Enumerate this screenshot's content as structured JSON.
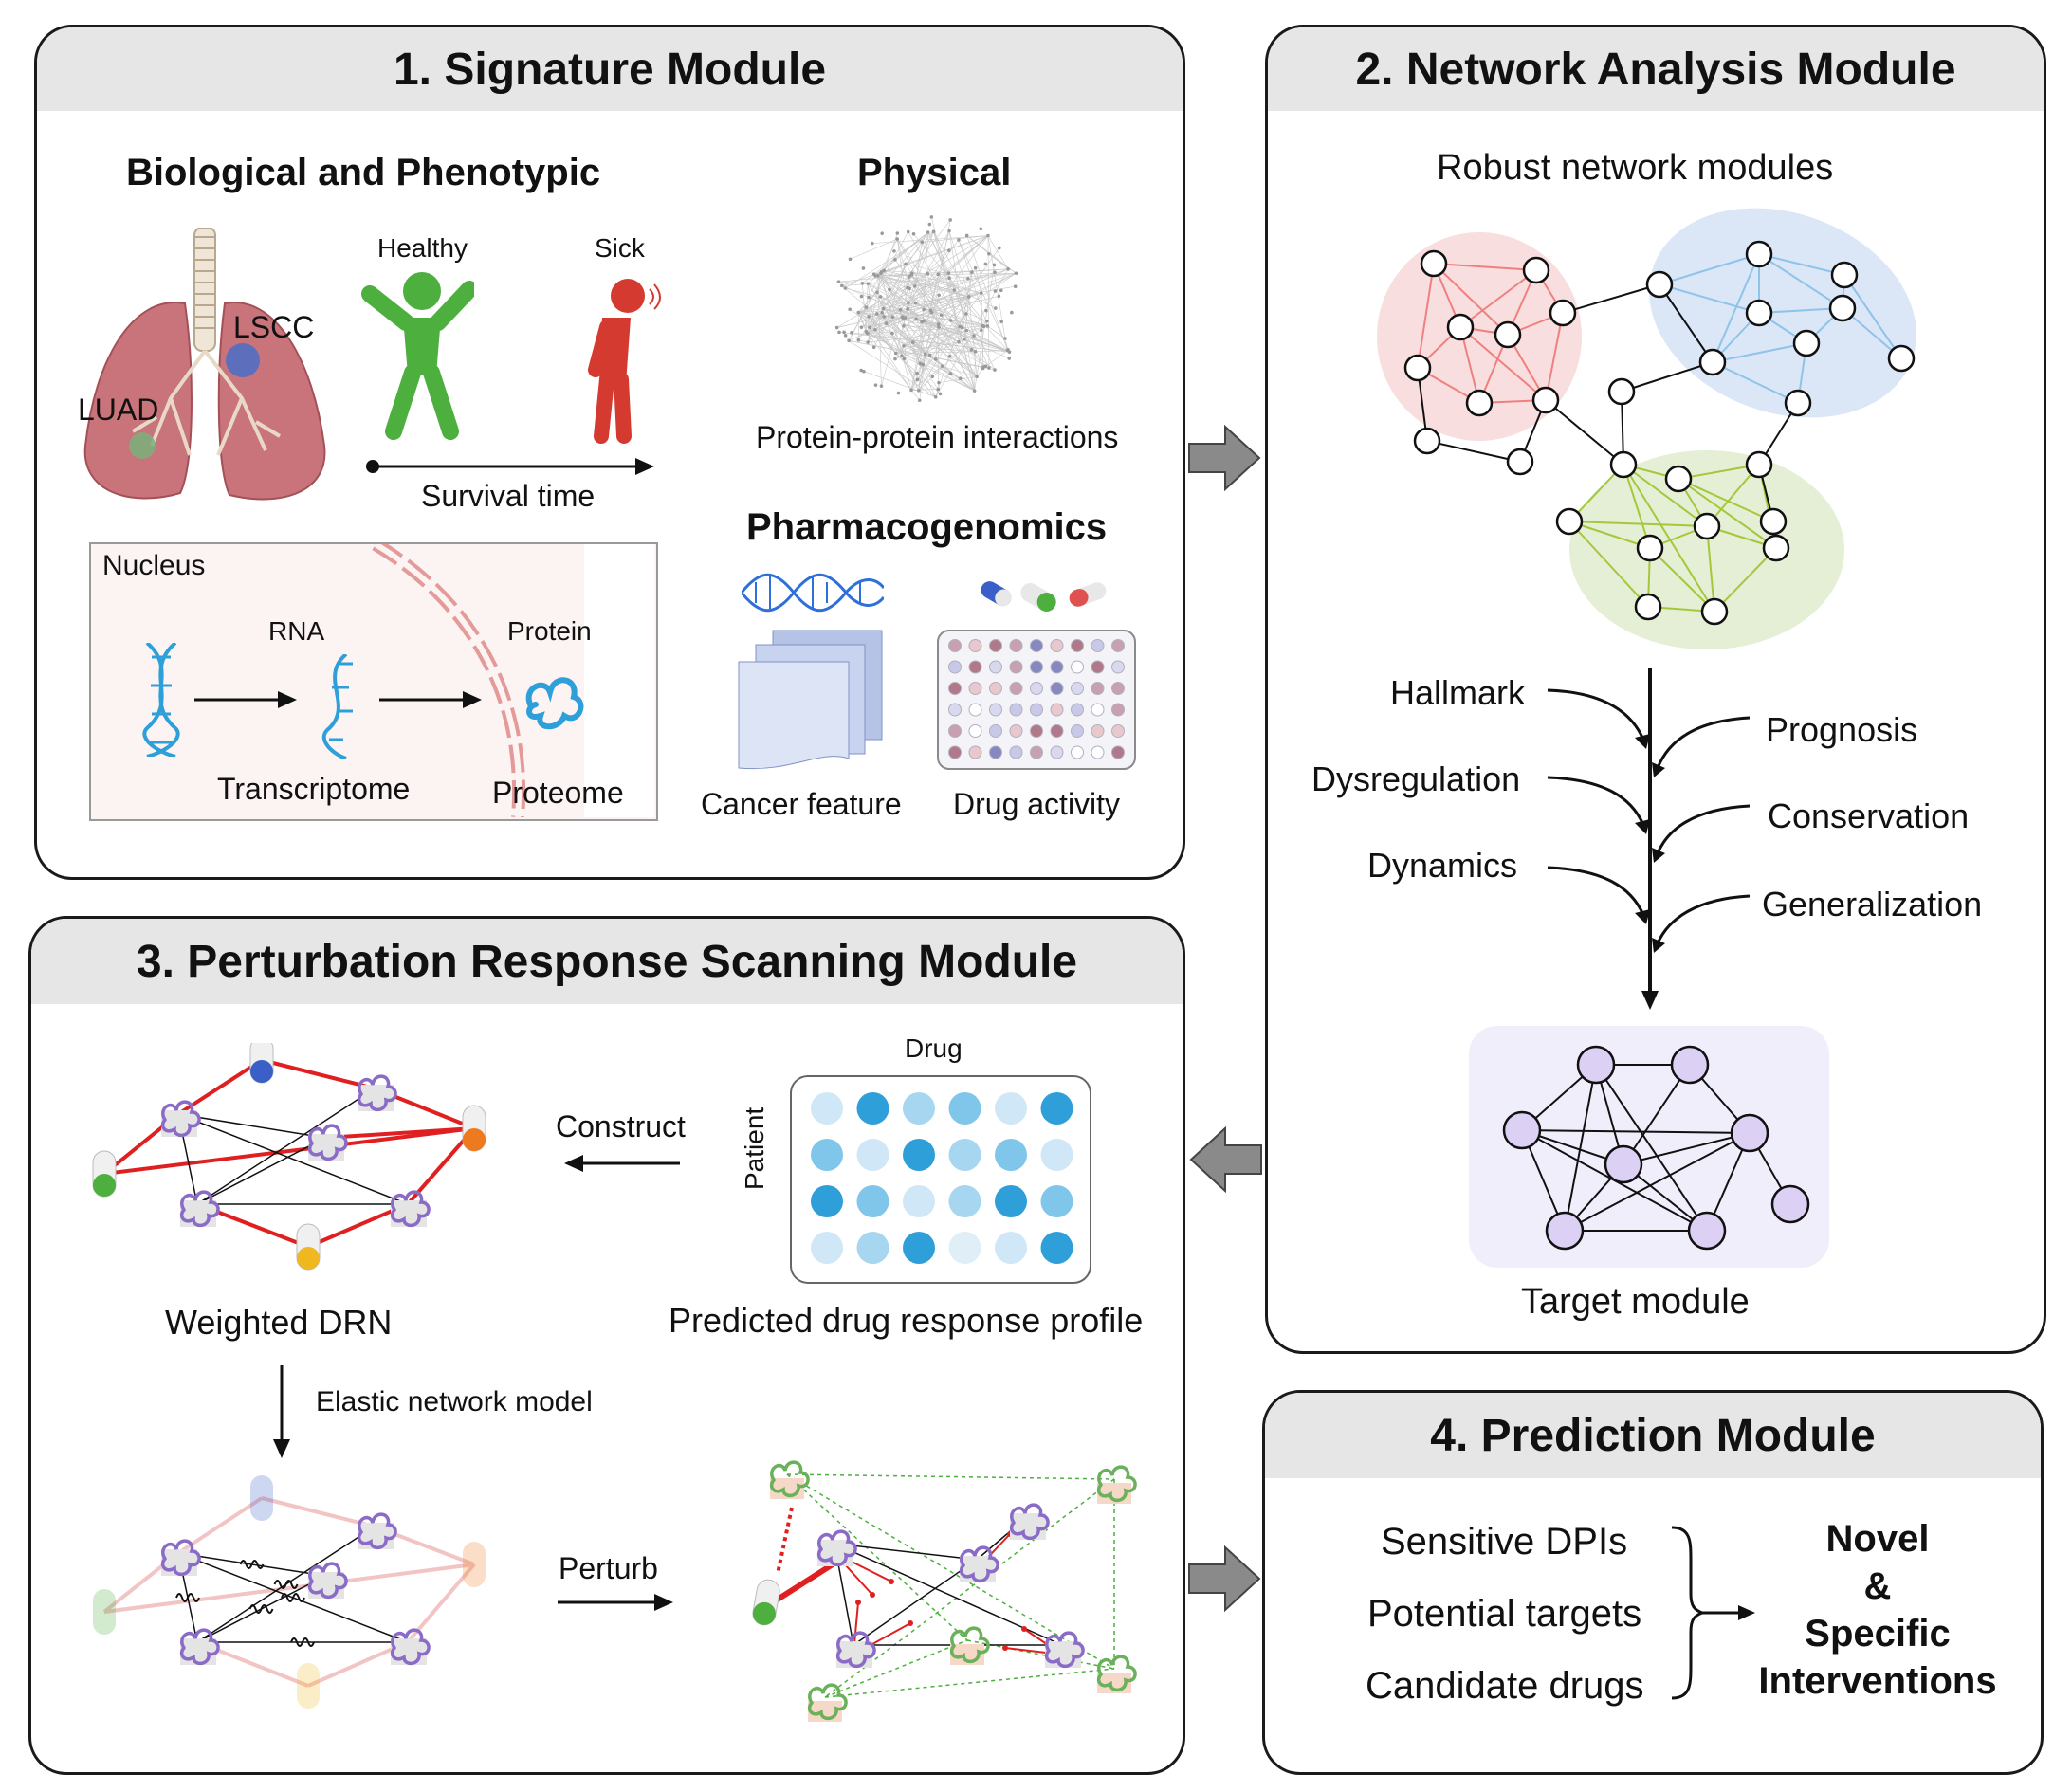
{
  "panel1": {
    "title": "1. Signature Module",
    "bio_heading": "Biological and Phenotypic",
    "physical_heading": "Physical",
    "healthy": "Healthy",
    "sick": "Sick",
    "lscc": "LSCC",
    "luad": "LUAD",
    "survival_time": "Survival time",
    "ppi": "Protein-protein interactions",
    "pharmaco_heading": "Pharmacogenomics",
    "nucleus": "Nucleus",
    "rna": "RNA",
    "protein": "Protein",
    "transcriptome": "Transcriptome",
    "proteome": "Proteome",
    "cancer_feature": "Cancer feature",
    "drug_activity": "Drug activity"
  },
  "panel2": {
    "title": "2. Network Analysis Module",
    "robust": "Robust network modules",
    "criteria_left": [
      "Hallmark",
      "Dysregulation",
      "Dynamics"
    ],
    "criteria_right": [
      "Prognosis",
      "Conservation",
      "Generalization"
    ],
    "target_module": "Target module"
  },
  "panel3": {
    "title": "3. Perturbation Response Scanning Module",
    "drug": "Drug",
    "patient": "Patient",
    "construct": "Construct",
    "weighted_drn": "Weighted DRN",
    "predicted_profile": "Predicted drug response profile",
    "elastic": "Elastic network model",
    "perturb": "Perturb"
  },
  "panel4": {
    "title": "4. Prediction Module",
    "items": [
      "Sensitive DPIs",
      "Potential targets",
      "Candidate drugs"
    ],
    "result_lines": [
      "Novel",
      "&",
      "Specific",
      "Interventions"
    ]
  },
  "colors": {
    "header_gray": "#e6e6e6",
    "red_module": "#f08080",
    "blue_module": "#8ec3ea",
    "green_module": "#a4c83a",
    "target_node": "#dcd0f5",
    "heatmap_blue": "#2e9fd9"
  }
}
